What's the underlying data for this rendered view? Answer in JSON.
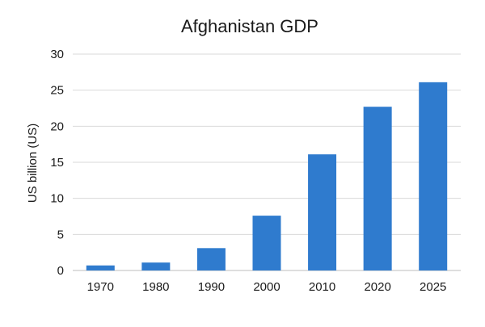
{
  "chart_data": {
    "type": "bar",
    "title": "Afghanistan GDP",
    "xlabel": "",
    "ylabel": "US billion (US)",
    "categories": [
      "1970",
      "1980",
      "1990",
      "2000",
      "2010",
      "2020",
      "2025"
    ],
    "values": [
      0.7,
      1.1,
      3.1,
      7.6,
      16.1,
      22.7,
      26.1
    ],
    "ylim": [
      0,
      30
    ],
    "yticks": [
      0,
      5,
      10,
      15,
      20,
      25,
      30
    ],
    "grid": true,
    "legend": "none",
    "bar_color": "#2f7bce"
  }
}
